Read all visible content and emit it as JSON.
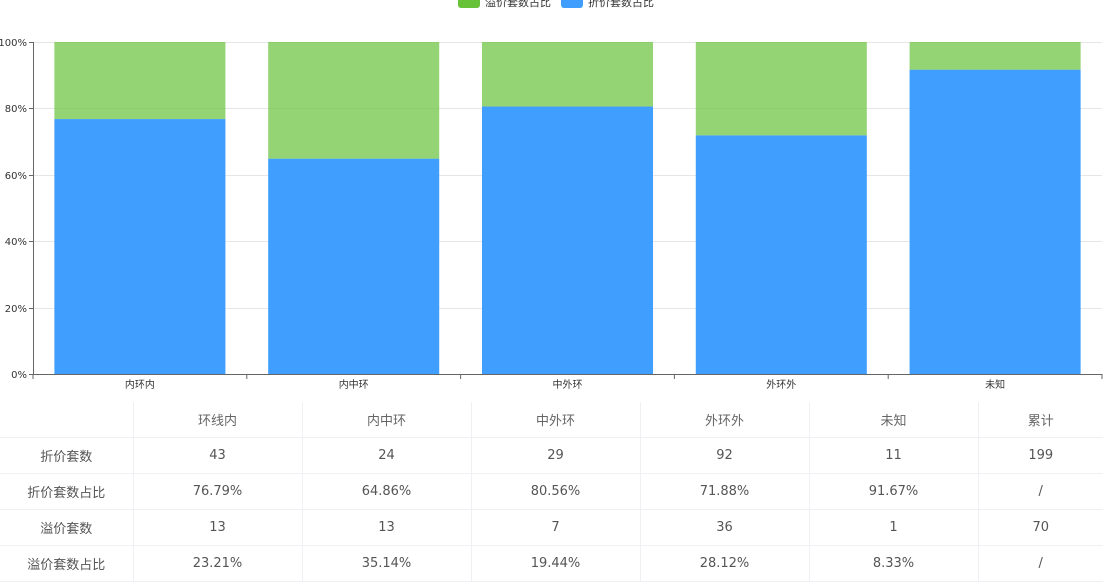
{
  "chart_data": {
    "type": "bar",
    "stacked": true,
    "categories": [
      "内环内",
      "内中环",
      "中外环",
      "外环外",
      "未知"
    ],
    "series": [
      {
        "name": "折价套数占比",
        "color": "#409eff",
        "values": [
          76.79,
          64.86,
          80.56,
          71.88,
          91.67
        ]
      },
      {
        "name": "溢价套数占比",
        "color": "#67c23a",
        "values": [
          23.21,
          35.14,
          19.44,
          28.12,
          8.33
        ]
      }
    ],
    "legend_order": [
      "溢价套数占比",
      "折价套数占比"
    ],
    "ylim": [
      0,
      100
    ],
    "yticks": [
      "0%",
      "20%",
      "40%",
      "60%",
      "80%",
      "100%"
    ],
    "ytick_values": [
      0,
      20,
      40,
      60,
      80,
      100
    ],
    "grid": true,
    "legend": "top-center"
  },
  "table": {
    "headers": [
      "",
      "环线内",
      "内中环",
      "中外环",
      "外环外",
      "未知",
      "累计"
    ],
    "rows": [
      [
        "折价套数",
        "43",
        "24",
        "29",
        "92",
        "11",
        "199"
      ],
      [
        "折价套数占比",
        "76.79%",
        "64.86%",
        "80.56%",
        "71.88%",
        "91.67%",
        "/"
      ],
      [
        "溢价套数",
        "13",
        "13",
        "7",
        "36",
        "1",
        "70"
      ],
      [
        "溢价套数占比",
        "23.21%",
        "35.14%",
        "19.44%",
        "28.12%",
        "8.33%",
        "/"
      ]
    ]
  }
}
